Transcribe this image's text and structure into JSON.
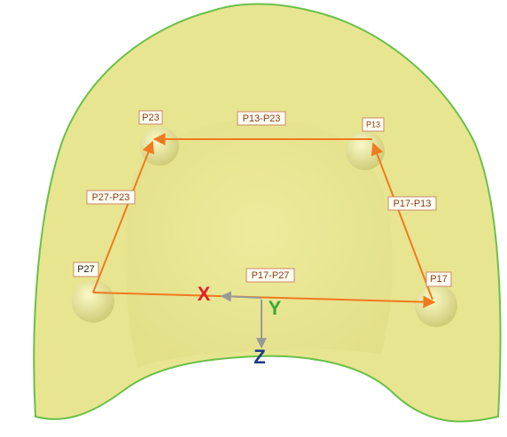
{
  "points": [
    {
      "label": "P23"
    },
    {
      "label": "P13"
    },
    {
      "label": "P27"
    },
    {
      "label": "P17"
    }
  ],
  "edges": [
    {
      "label": "P13-P23"
    },
    {
      "label": "P27-P23"
    },
    {
      "label": "P17-P13"
    },
    {
      "label": "P17-P27"
    }
  ],
  "axes": {
    "x": "X",
    "y": "Y",
    "z": "Z"
  }
}
